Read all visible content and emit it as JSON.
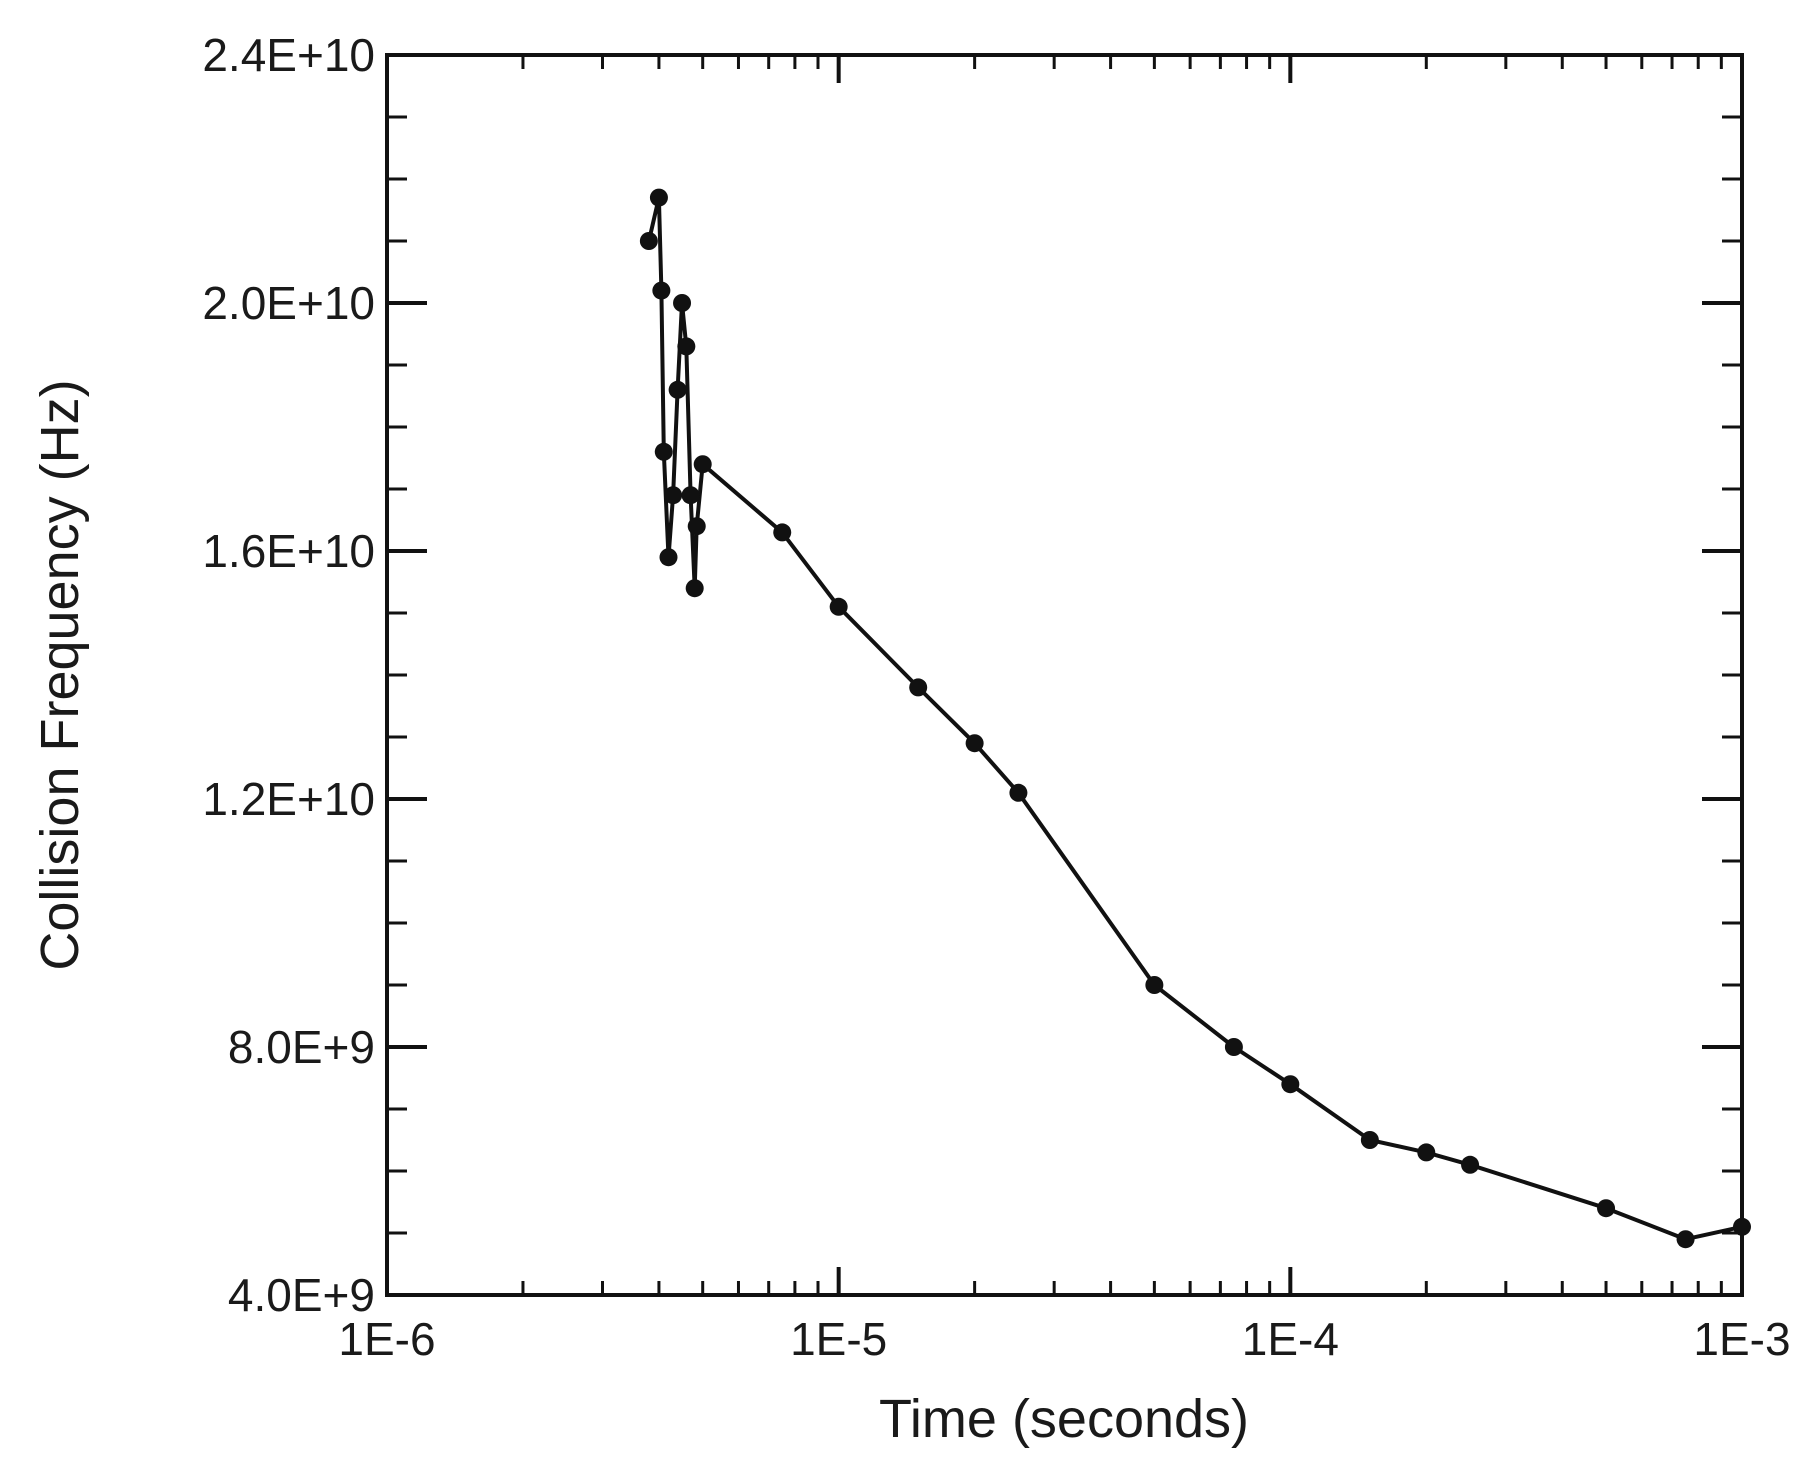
{
  "chart_data": {
    "type": "line",
    "xlabel": "Time (seconds)",
    "ylabel": "Collision Frequency (Hz)",
    "x_scale": "log",
    "xlim": [
      1e-06,
      0.001
    ],
    "ylim": [
      4000000000.0,
      24000000000.0
    ],
    "x_ticks": [
      {
        "value": 1e-06,
        "label": "1E-6"
      },
      {
        "value": 1e-05,
        "label": "1E-5"
      },
      {
        "value": 0.0001,
        "label": "1E-4"
      },
      {
        "value": 0.001,
        "label": "1E-3"
      }
    ],
    "y_ticks": [
      {
        "value": 4000000000.0,
        "label": "4.0E+9"
      },
      {
        "value": 8000000000.0,
        "label": "8.0E+9"
      },
      {
        "value": 12000000000.0,
        "label": "1.2E+10"
      },
      {
        "value": 16000000000.0,
        "label": "1.6E+10"
      },
      {
        "value": 20000000000.0,
        "label": "2.0E+10"
      },
      {
        "value": 24000000000.0,
        "label": "2.4E+10"
      }
    ],
    "grid": false,
    "legend": "none",
    "line_color": "#111111",
    "series": [
      {
        "points": [
          {
            "x": 3.8e-06,
            "y": 21000000000.0
          },
          {
            "x": 4e-06,
            "y": 21700000000.0
          },
          {
            "x": 4.05e-06,
            "y": 20200000000.0
          },
          {
            "x": 4.1e-06,
            "y": 17600000000.0
          },
          {
            "x": 4.2e-06,
            "y": 15900000000.0
          },
          {
            "x": 4.3e-06,
            "y": 16900000000.0
          },
          {
            "x": 4.4e-06,
            "y": 18600000000.0
          },
          {
            "x": 4.5e-06,
            "y": 20000000000.0
          },
          {
            "x": 4.6e-06,
            "y": 19300000000.0
          },
          {
            "x": 4.7e-06,
            "y": 16900000000.0
          },
          {
            "x": 4.8e-06,
            "y": 15400000000.0
          },
          {
            "x": 4.85e-06,
            "y": 16400000000.0
          },
          {
            "x": 5e-06,
            "y": 17400000000.0
          },
          {
            "x": 7.5e-06,
            "y": 16300000000.0
          },
          {
            "x": 1e-05,
            "y": 15100000000.0
          },
          {
            "x": 1.5e-05,
            "y": 13800000000.0
          },
          {
            "x": 2e-05,
            "y": 12900000000.0
          },
          {
            "x": 2.5e-05,
            "y": 12100000000.0
          },
          {
            "x": 5e-05,
            "y": 9000000000.0
          },
          {
            "x": 7.5e-05,
            "y": 8000000000.0
          },
          {
            "x": 0.0001,
            "y": 7400000000.0
          },
          {
            "x": 0.00015,
            "y": 6500000000.0
          },
          {
            "x": 0.0002,
            "y": 6300000000.0
          },
          {
            "x": 0.00025,
            "y": 6100000000.0
          },
          {
            "x": 0.0005,
            "y": 5400000000.0
          },
          {
            "x": 0.00075,
            "y": 4900000000.0
          },
          {
            "x": 0.001,
            "y": 5100000000.0
          }
        ]
      }
    ]
  }
}
